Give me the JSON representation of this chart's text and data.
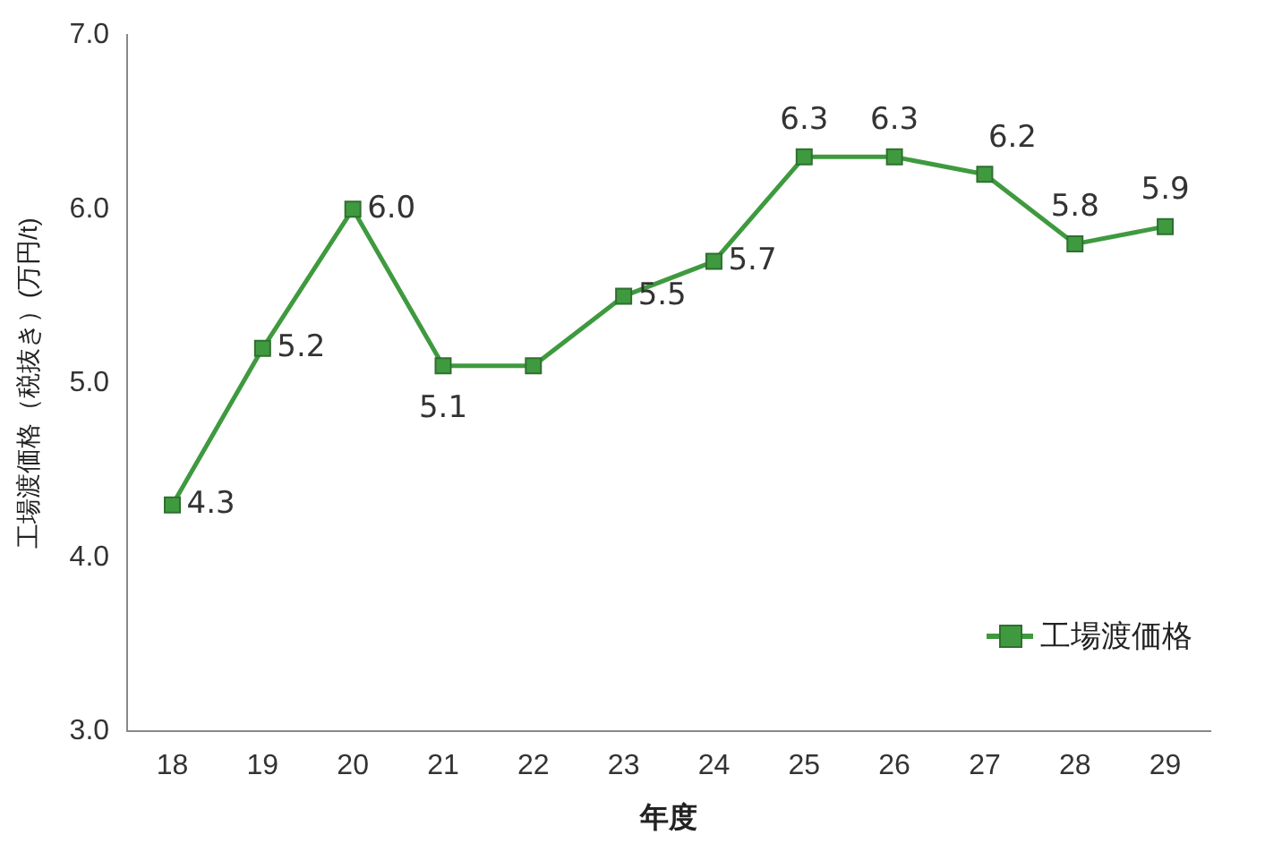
{
  "chart_data": {
    "type": "line",
    "xlabel": "年度",
    "ylabel": "工場渡価格（税抜き）(万円/t)",
    "categories": [
      "18",
      "19",
      "20",
      "21",
      "22",
      "23",
      "24",
      "25",
      "26",
      "27",
      "28",
      "29"
    ],
    "series": [
      {
        "name": "工場渡価格",
        "color": "#3f9a3f",
        "values": [
          4.3,
          5.2,
          6.0,
          5.1,
          5.1,
          5.5,
          5.7,
          6.3,
          6.3,
          6.2,
          5.8,
          5.9
        ],
        "value_labels": [
          "4.3",
          "5.2",
          "6.0",
          "5.1",
          null,
          "5.5",
          "5.7",
          "6.3",
          "6.3",
          "6.2",
          "5.8",
          "5.9"
        ]
      }
    ],
    "ylim": [
      3,
      7
    ],
    "yticks": [
      {
        "value": 3,
        "label": "3.0"
      },
      {
        "value": 4,
        "label": "4.0"
      },
      {
        "value": 5,
        "label": "5.0"
      },
      {
        "value": 6,
        "label": "6.0"
      },
      {
        "value": 7,
        "label": "7.0"
      }
    ],
    "grid": false,
    "legend": "bottom right",
    "marker": "square",
    "line_style": "solid"
  }
}
